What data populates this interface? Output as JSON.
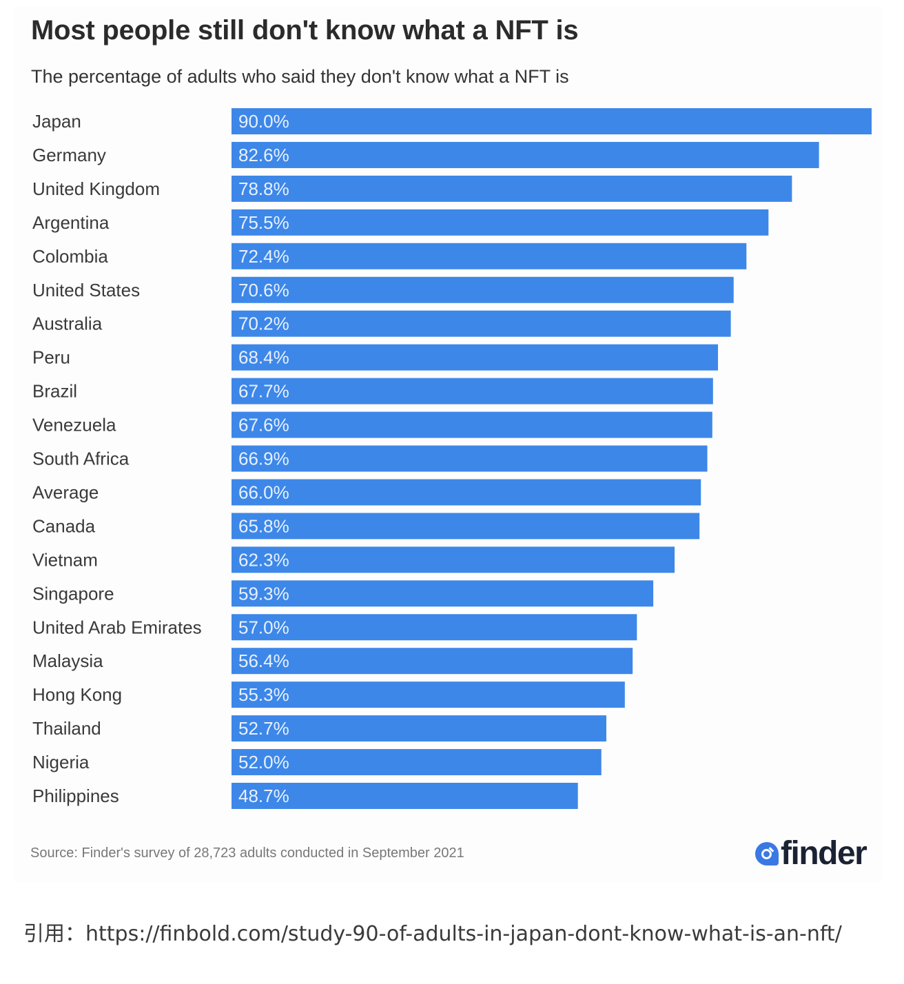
{
  "header": {
    "title": "Most people still don't know what a NFT is",
    "subtitle": "The percentage of adults who said they don't know what a NFT is"
  },
  "footer": {
    "source": "Source: Finder's survey of 28,723 adults conducted in September 2021",
    "logo_text": "finder",
    "logo_icon": "magnifier-drop-icon"
  },
  "citation": "引用：https://finbold.com/study-90-of-adults-in-japan-dont-know-what-is-an-nft/",
  "colors": {
    "bar": "#3d87e8",
    "bar_label": "#e8f1ff",
    "category_label": "#3a3a3a"
  },
  "chart_data": {
    "type": "bar",
    "orientation": "horizontal",
    "title": "Most people still don't know what a NFT is",
    "subtitle": "The percentage of adults who said they don't know what a NFT is",
    "xlabel": "",
    "ylabel": "",
    "unit": "%",
    "xlim": [
      0,
      90
    ],
    "grid": false,
    "legend": "none",
    "categories": [
      "Japan",
      "Germany",
      "United Kingdom",
      "Argentina",
      "Colombia",
      "United States",
      "Australia",
      "Peru",
      "Brazil",
      "Venezuela",
      "South Africa",
      "Average",
      "Canada",
      "Vietnam",
      "Singapore",
      "United Arab Emirates",
      "Malaysia",
      "Hong Kong",
      "Thailand",
      "Nigeria",
      "Philippines"
    ],
    "values": [
      90.0,
      82.6,
      78.8,
      75.5,
      72.4,
      70.6,
      70.2,
      68.4,
      67.7,
      67.6,
      66.9,
      66.0,
      65.8,
      62.3,
      59.3,
      57.0,
      56.4,
      55.3,
      52.7,
      52.0,
      48.7
    ],
    "labels": [
      "90.0%",
      "82.6%",
      "78.8%",
      "75.5%",
      "72.4%",
      "70.6%",
      "70.2%",
      "68.4%",
      "67.7%",
      "67.6%",
      "66.9%",
      "66.0%",
      "65.8%",
      "62.3%",
      "59.3%",
      "57.0%",
      "56.4%",
      "55.3%",
      "52.7%",
      "52.0%",
      "48.7%"
    ]
  }
}
